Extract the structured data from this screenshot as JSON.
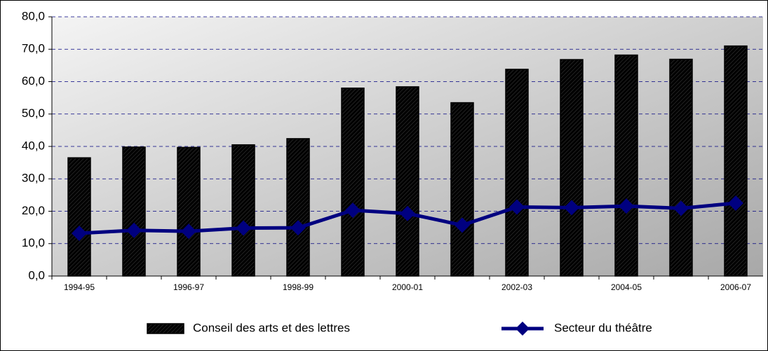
{
  "chart_data": {
    "type": "bar-line",
    "categories": [
      "1994-95",
      null,
      "1996-97",
      null,
      "1998-99",
      null,
      "2000-01",
      null,
      "2002-03",
      null,
      "2004-05",
      null,
      "2006-07"
    ],
    "series": [
      {
        "name": "Conseil des arts et des lettres",
        "type": "bar",
        "color": "#b05c80",
        "values": [
          36.5,
          39.8,
          39.7,
          40.5,
          42.4,
          58.0,
          58.4,
          53.5,
          63.8,
          66.8,
          68.2,
          66.9,
          71.0
        ]
      },
      {
        "name": "Secteur du théâtre",
        "type": "line",
        "color": "#000080",
        "values": [
          13.2,
          14.1,
          13.8,
          14.8,
          14.9,
          20.3,
          19.3,
          15.7,
          21.3,
          21.1,
          21.6,
          20.9,
          22.5
        ]
      }
    ],
    "ylim": [
      0,
      80
    ],
    "yticks": [
      {
        "value": 0,
        "label": "0,0"
      },
      {
        "value": 10,
        "label": "10,0"
      },
      {
        "value": 20,
        "label": "20,0"
      },
      {
        "value": 30,
        "label": "30,0"
      },
      {
        "value": 40,
        "label": "40,0"
      },
      {
        "value": 50,
        "label": "50,0"
      },
      {
        "value": 60,
        "label": "60,0"
      },
      {
        "value": 70,
        "label": "70,0"
      },
      {
        "value": 80,
        "label": "80,0"
      }
    ],
    "grid": true,
    "legend": "bottom"
  }
}
